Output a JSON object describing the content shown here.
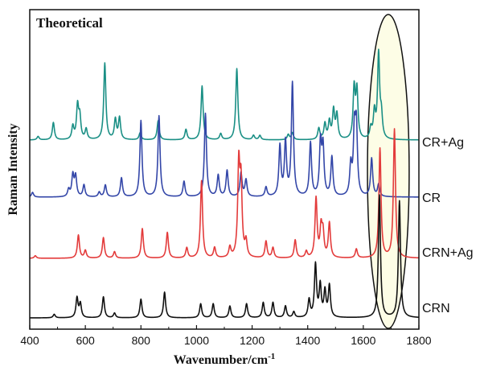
{
  "chart_data": {
    "type": "line",
    "title": "Theoretical",
    "xlabel": "Wavenumber/cm",
    "xlabel_sup": "-1",
    "ylabel": "Raman Intensity",
    "xlim": [
      400,
      1800
    ],
    "xticks": [
      400,
      600,
      800,
      1000,
      1200,
      1400,
      1600,
      1800
    ],
    "yaxis_ticks": false,
    "grid": false,
    "highlight_region": {
      "center": 1690,
      "halfwidth": 75,
      "fill": "#fdfde6"
    },
    "series": [
      {
        "name": "CR+Ag",
        "color": "#1a8f85",
        "peaks": [
          [
            430,
            0.04
          ],
          [
            485,
            0.2
          ],
          [
            555,
            0.15
          ],
          [
            572,
            0.38
          ],
          [
            580,
            0.25
          ],
          [
            603,
            0.12
          ],
          [
            670,
            0.88
          ],
          [
            708,
            0.23
          ],
          [
            723,
            0.25
          ],
          [
            797,
            0.08
          ],
          [
            862,
            0.22
          ],
          [
            962,
            0.12
          ],
          [
            1020,
            0.62
          ],
          [
            1087,
            0.07
          ],
          [
            1145,
            0.82
          ],
          [
            1205,
            0.05
          ],
          [
            1228,
            0.05
          ],
          [
            1330,
            0.06
          ],
          [
            1345,
            0.08
          ],
          [
            1440,
            0.13
          ],
          [
            1462,
            0.18
          ],
          [
            1478,
            0.2
          ],
          [
            1493,
            0.33
          ],
          [
            1505,
            0.28
          ],
          [
            1567,
            0.58
          ],
          [
            1577,
            0.55
          ],
          [
            1627,
            0.12
          ],
          [
            1640,
            0.3
          ],
          [
            1655,
            0.97
          ],
          [
            1665,
            0.25
          ]
        ]
      },
      {
        "name": "CR",
        "color": "#3346a8",
        "peaks": [
          [
            410,
            0.04
          ],
          [
            540,
            0.06
          ],
          [
            555,
            0.18
          ],
          [
            565,
            0.17
          ],
          [
            595,
            0.1
          ],
          [
            650,
            0.04
          ],
          [
            672,
            0.1
          ],
          [
            730,
            0.16
          ],
          [
            800,
            0.64
          ],
          [
            865,
            0.68
          ],
          [
            955,
            0.13
          ],
          [
            1032,
            0.7
          ],
          [
            1078,
            0.18
          ],
          [
            1110,
            0.22
          ],
          [
            1160,
            0.2
          ],
          [
            1178,
            0.14
          ],
          [
            1250,
            0.08
          ],
          [
            1300,
            0.42
          ],
          [
            1320,
            0.45
          ],
          [
            1345,
            0.95
          ],
          [
            1410,
            0.45
          ],
          [
            1446,
            0.44
          ],
          [
            1455,
            0.4
          ],
          [
            1487,
            0.33
          ],
          [
            1555,
            0.25
          ],
          [
            1568,
            0.52
          ],
          [
            1575,
            0.55
          ],
          [
            1630,
            0.32
          ],
          [
            1655,
            0.1
          ]
        ]
      },
      {
        "name": "CRN+Ag",
        "color": "#e33b3b",
        "peaks": [
          [
            420,
            0.02
          ],
          [
            575,
            0.18
          ],
          [
            600,
            0.06
          ],
          [
            665,
            0.16
          ],
          [
            705,
            0.05
          ],
          [
            805,
            0.23
          ],
          [
            895,
            0.2
          ],
          [
            965,
            0.08
          ],
          [
            1018,
            0.6
          ],
          [
            1065,
            0.08
          ],
          [
            1120,
            0.08
          ],
          [
            1152,
            0.7
          ],
          [
            1160,
            0.55
          ],
          [
            1178,
            0.12
          ],
          [
            1250,
            0.13
          ],
          [
            1275,
            0.08
          ],
          [
            1355,
            0.14
          ],
          [
            1395,
            0.05
          ],
          [
            1430,
            0.46
          ],
          [
            1448,
            0.22
          ],
          [
            1455,
            0.18
          ],
          [
            1478,
            0.27
          ],
          [
            1575,
            0.07
          ],
          [
            1660,
            0.85
          ],
          [
            1712,
            1.0
          ]
        ]
      },
      {
        "name": "CRN",
        "color": "#111111",
        "peaks": [
          [
            488,
            0.03
          ],
          [
            570,
            0.17
          ],
          [
            582,
            0.12
          ],
          [
            665,
            0.18
          ],
          [
            705,
            0.04
          ],
          [
            800,
            0.16
          ],
          [
            885,
            0.22
          ],
          [
            1015,
            0.12
          ],
          [
            1060,
            0.12
          ],
          [
            1120,
            0.1
          ],
          [
            1180,
            0.12
          ],
          [
            1240,
            0.13
          ],
          [
            1275,
            0.13
          ],
          [
            1320,
            0.1
          ],
          [
            1350,
            0.05
          ],
          [
            1405,
            0.15
          ],
          [
            1428,
            0.45
          ],
          [
            1445,
            0.27
          ],
          [
            1462,
            0.22
          ],
          [
            1478,
            0.27
          ],
          [
            1658,
            1.05
          ],
          [
            1730,
            1.0
          ]
        ]
      }
    ]
  }
}
